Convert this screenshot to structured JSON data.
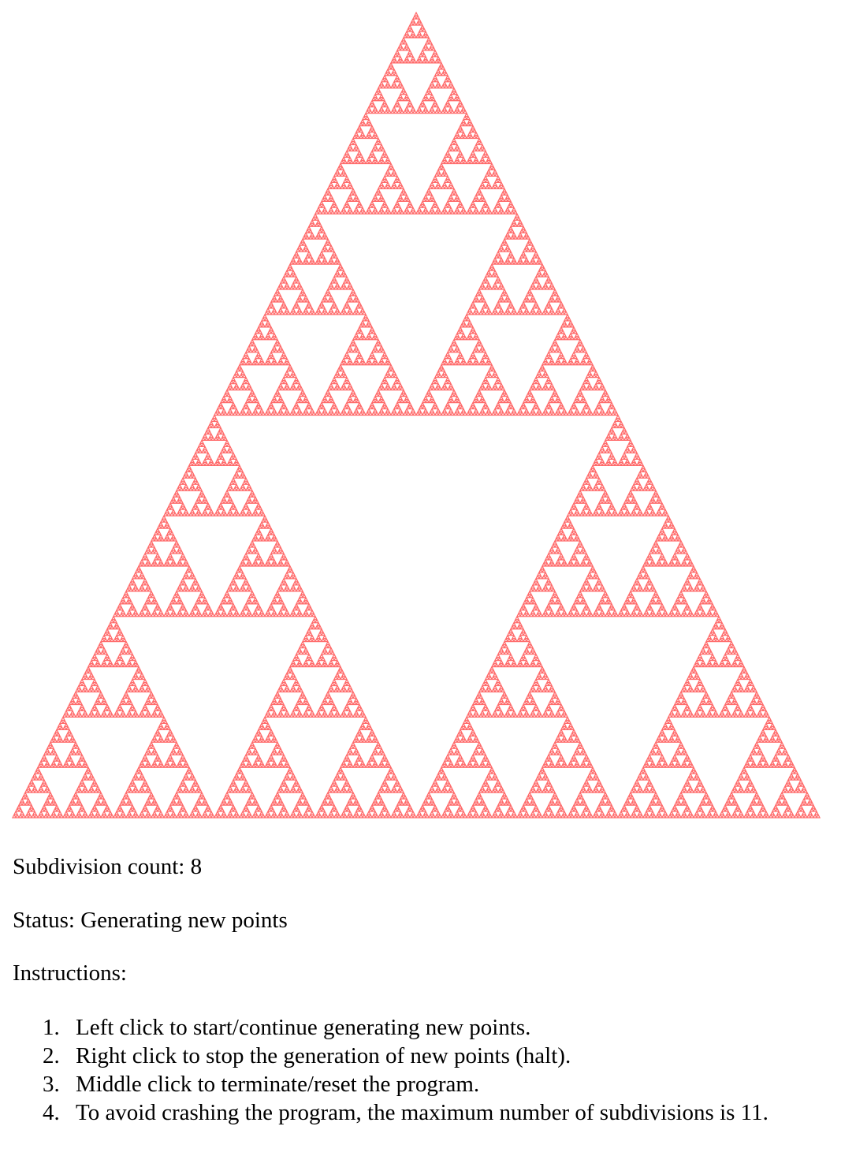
{
  "gasket": {
    "color": "#ff6b6b",
    "depth": 8
  },
  "info": {
    "count_label": "Subdivision count:",
    "count_value": "8",
    "status_label": "Status:",
    "status_value": "Generating new points",
    "instructions_heading": "Instructions:"
  },
  "instructions": [
    {
      "num": "1.",
      "text": "Left click to start/continue generating new points."
    },
    {
      "num": "2.",
      "text": "Right click to stop the generation of new points (halt)."
    },
    {
      "num": "3.",
      "text": "Middle click to terminate/reset the program."
    },
    {
      "num": "4.",
      "text": "To avoid crashing the program, the maximum number of subdivisions is 11."
    }
  ]
}
